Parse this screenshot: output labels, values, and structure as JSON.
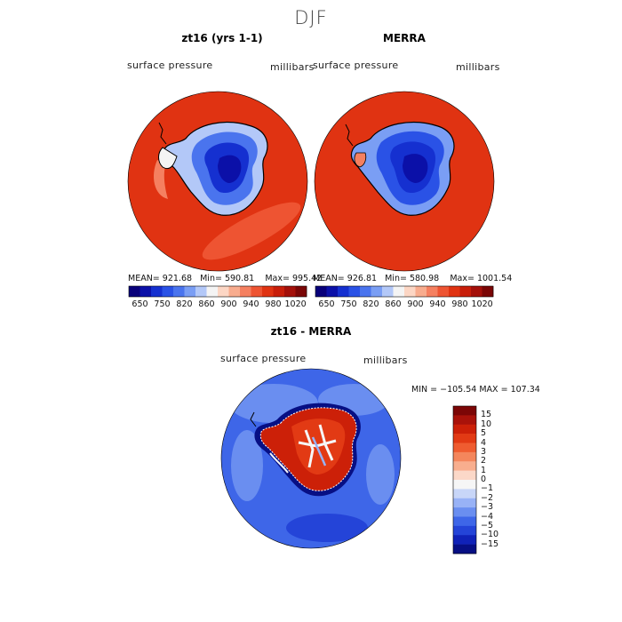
{
  "figure": {
    "season": "DJF"
  },
  "panels": [
    {
      "title": "zt16 (yrs 1-1)",
      "variable": "surface pressure",
      "units": "millibars",
      "mean_label": "MEAN=",
      "mean": "921.68",
      "min_label": "Min=",
      "min": "590.81",
      "max_label": "Max=",
      "max": "995.42"
    },
    {
      "title": "MERRA",
      "variable": "surface pressure",
      "units": "millibars",
      "mean_label": "MEAN=",
      "mean": "926.81",
      "min_label": "Min=",
      "min": "580.98",
      "max_label": "Max=",
      "max": "1001.54"
    }
  ],
  "colorbar_field": {
    "tick_labels": [
      "650",
      "750",
      "820",
      "860",
      "900",
      "940",
      "980",
      "1020"
    ],
    "colors": [
      "#08007a",
      "#0b10a8",
      "#1530d0",
      "#2a52e6",
      "#4a74ee",
      "#7a9ef4",
      "#b3c8f8",
      "#f4f4f4",
      "#fcd6c4",
      "#f8ac8e",
      "#f58060",
      "#ee5432",
      "#e03312",
      "#c81e0a",
      "#a4100a",
      "#7a0606"
    ]
  },
  "difference": {
    "title": "zt16 - MERRA",
    "variable": "surface pressure",
    "units": "millibars",
    "min_label": "MIN =",
    "min": "−105.54",
    "max_label": "MAX =",
    "max": "107.34",
    "legend_labels": [
      "15",
      "10",
      "5",
      "4",
      "3",
      "2",
      "1",
      "0",
      "−1",
      "−2",
      "−3",
      "−4",
      "−5",
      "−10",
      "−15"
    ],
    "legend_colors": [
      "#7c0606",
      "#a9120a",
      "#cc2008",
      "#e23a14",
      "#ef5c30",
      "#f4865c",
      "#f8ae8e",
      "#fbd8c8",
      "#f6f6f6",
      "#c8d6f8",
      "#98b2f6",
      "#6a8ef0",
      "#3e66e8",
      "#2444d8",
      "#1022b8",
      "#070f84"
    ]
  }
}
